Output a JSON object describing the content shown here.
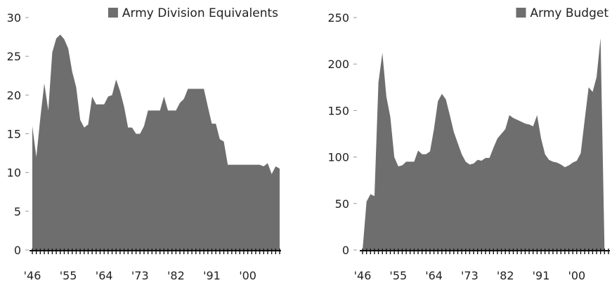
{
  "chart_data": [
    {
      "type": "area",
      "legend": "Army Division Equivalents",
      "legend_position": "top-right",
      "color": "#6e6e6e",
      "ylim": [
        0,
        30
      ],
      "yticks": [
        0,
        5,
        10,
        15,
        20,
        25,
        30
      ],
      "xlim": [
        1946,
        2008
      ],
      "xticks": [
        1946,
        1955,
        1964,
        1973,
        1982,
        1991,
        2000
      ],
      "xtick_labels": [
        "'46",
        "'55",
        "'64",
        "'73",
        "'82",
        "'91",
        "'00"
      ],
      "series": [
        {
          "x": [
            1946,
            1947,
            1948,
            1949,
            1950,
            1951,
            1952,
            1953,
            1954,
            1955,
            1956,
            1957,
            1958,
            1959,
            1960,
            1961,
            1962,
            1963,
            1964,
            1965,
            1966,
            1967,
            1968,
            1969,
            1970,
            1971,
            1972,
            1973,
            1974,
            1975,
            1976,
            1977,
            1978,
            1979,
            1980,
            1981,
            1982,
            1983,
            1984,
            1985,
            1986,
            1987,
            1988,
            1989,
            1990,
            1991,
            1992,
            1993,
            1994,
            1995,
            1996,
            1997,
            1998,
            1999,
            2000,
            2001,
            2002,
            2003,
            2004,
            2005,
            2006,
            2007,
            2008
          ],
          "values": [
            16,
            12,
            17,
            21.5,
            18,
            25.5,
            27.3,
            27.8,
            27.2,
            26,
            23,
            21,
            16.8,
            15.8,
            16.2,
            19.8,
            18.8,
            18.8,
            18.8,
            19.8,
            20,
            22,
            20.5,
            18.5,
            15.8,
            15.8,
            15,
            15,
            16,
            18,
            18,
            18,
            18,
            19.8,
            18,
            18,
            18,
            19,
            19.5,
            20.8,
            20.8,
            20.8,
            20.8,
            20.8,
            18.5,
            16.3,
            16.3,
            14.3,
            14,
            11,
            11,
            11,
            11,
            11,
            11,
            11,
            11,
            11,
            10.8,
            11.2,
            9.8,
            10.8,
            10.5
          ]
        }
      ]
    },
    {
      "type": "area",
      "legend": "Army Budget",
      "legend_position": "top-right",
      "color": "#6e6e6e",
      "ylim": [
        0,
        250
      ],
      "yticks": [
        0,
        50,
        100,
        150,
        200,
        250
      ],
      "xlim": [
        1946,
        2008
      ],
      "xticks": [
        1946,
        1955,
        1964,
        1973,
        1982,
        1991,
        2000
      ],
      "xtick_labels": [
        "'46",
        "'55",
        "'64",
        "'73",
        "'82",
        "'91",
        "'00"
      ],
      "series": [
        {
          "x": [
            1946,
            1947,
            1948,
            1949,
            1950,
            1951,
            1952,
            1953,
            1954,
            1955,
            1956,
            1957,
            1958,
            1959,
            1960,
            1961,
            1962,
            1963,
            1964,
            1965,
            1966,
            1967,
            1968,
            1969,
            1970,
            1971,
            1972,
            1973,
            1974,
            1975,
            1976,
            1977,
            1978,
            1979,
            1980,
            1981,
            1982,
            1983,
            1984,
            1985,
            1986,
            1987,
            1988,
            1989,
            1990,
            1991,
            1992,
            1993,
            1994,
            1995,
            1996,
            1997,
            1998,
            1999,
            2000,
            2001,
            2002,
            2003,
            2004,
            2005,
            2006,
            2007,
            2008
          ],
          "values": [
            0,
            52,
            60,
            58,
            180,
            212,
            165,
            143,
            100,
            90,
            91,
            95,
            95,
            95,
            107,
            103,
            103,
            106,
            130,
            160,
            168,
            162,
            145,
            127,
            115,
            103,
            95,
            92,
            93,
            97,
            96,
            99,
            99,
            110,
            120,
            125,
            130,
            145,
            142,
            140,
            138,
            136,
            135,
            133,
            145,
            120,
            103,
            97,
            95,
            94,
            92,
            89,
            91,
            94,
            96,
            104,
            140,
            175,
            170,
            186,
            228,
            0,
            0
          ]
        }
      ]
    }
  ]
}
